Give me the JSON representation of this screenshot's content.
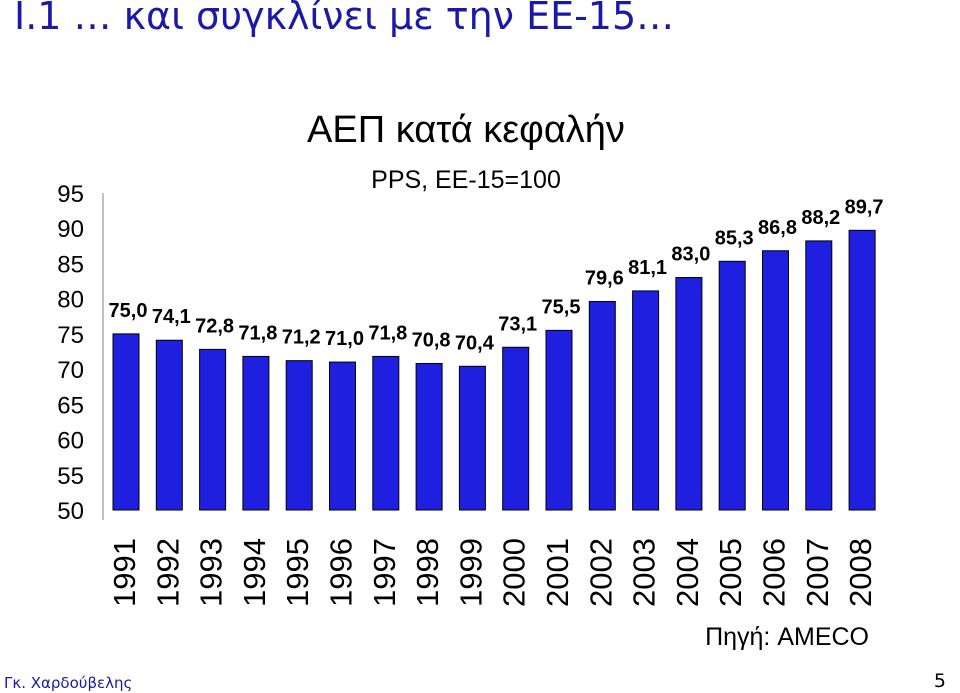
{
  "slide": {
    "title": "I.1 … και συγκλίνει με την ΕΕ-15…",
    "author": "Γκ. Χαρδούβελης",
    "page_number": "5"
  },
  "chart_data": {
    "type": "bar",
    "title": "ΑΕΠ κατά κεφαλήν",
    "subtitle": "PPS, ΕΕ-15=100",
    "source": "Πηγή: AMECO",
    "categories": [
      "1991",
      "1992",
      "1993",
      "1994",
      "1995",
      "1996",
      "1997",
      "1998",
      "1999",
      "2000",
      "2001",
      "2002",
      "2003",
      "2004",
      "2005",
      "2006",
      "2007",
      "2008"
    ],
    "values": [
      75.0,
      74.1,
      72.8,
      71.8,
      71.2,
      71.0,
      71.8,
      70.8,
      70.4,
      73.1,
      75.5,
      79.6,
      81.1,
      83.0,
      85.3,
      86.8,
      88.2,
      89.7
    ],
    "data_labels": [
      "75,0",
      "74,1",
      "72,8",
      "71,8",
      "71,2",
      "71,0",
      "71,8",
      "70,8",
      "70,4",
      "73,1",
      "75,5",
      "79,6",
      "81,1",
      "83,0",
      "85,3",
      "86,8",
      "88,2",
      "89,7"
    ],
    "y_ticks": [
      50,
      55,
      60,
      65,
      70,
      75,
      80,
      85,
      90,
      95
    ],
    "ylim": [
      50,
      95
    ],
    "bar_color": "#1f1fe0",
    "bar_border_color": "#000000",
    "grid": false,
    "legend": "none"
  }
}
